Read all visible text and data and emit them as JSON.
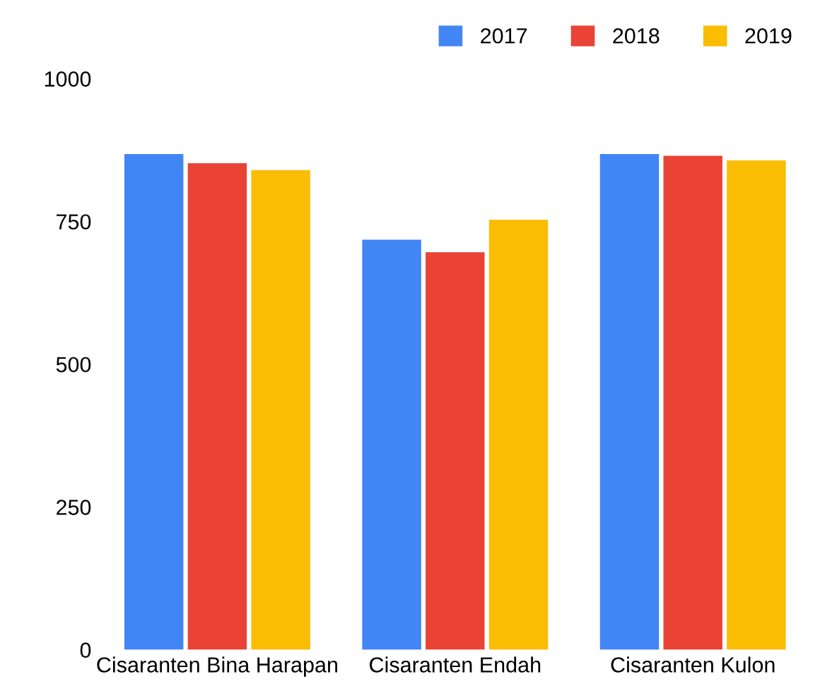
{
  "chart_data": {
    "type": "bar",
    "categories": [
      "Cisaranten Bina Harapan",
      "Cisaranten Endah",
      "Cisaranten Kulon"
    ],
    "series": [
      {
        "name": "2017",
        "color": "#4285f4",
        "values": [
          868,
          718,
          868
        ]
      },
      {
        "name": "2018",
        "color": "#ea4335",
        "values": [
          852,
          696,
          865
        ]
      },
      {
        "name": "2019",
        "color": "#fbbc04",
        "values": [
          840,
          753,
          857
        ]
      }
    ],
    "ylim": [
      0,
      1000
    ],
    "yticks": [
      0,
      250,
      500,
      750,
      1000
    ],
    "grid": false,
    "legend": "top right"
  }
}
